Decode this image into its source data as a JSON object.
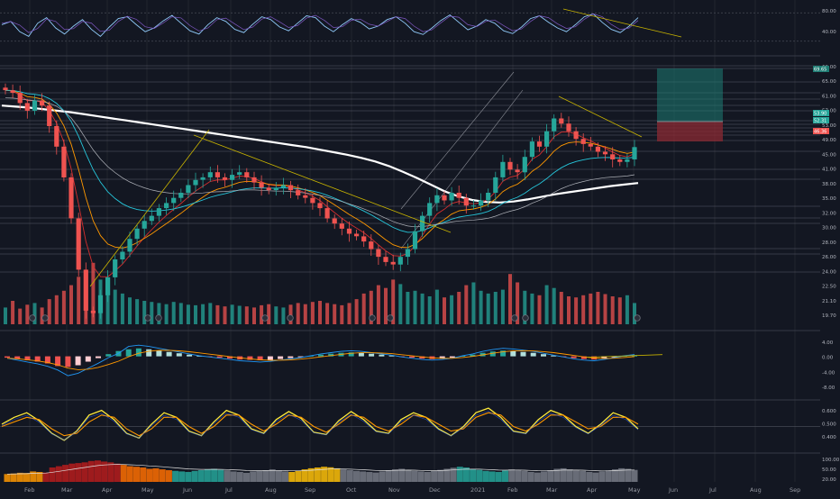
{
  "colors": {
    "background": "#131722",
    "grid": "#2a2e39",
    "up": "#26a69a",
    "down": "#ef5350",
    "sma200": "#ffffff",
    "ema_fast": "#d32f2f",
    "ema_mid": "#ff9800",
    "ema_teal": "#26c6da",
    "trendline": "#c9b400",
    "macd_line": "#2196f3",
    "signal_line": "#ff9800",
    "rsi": "#90caf9",
    "stoch_k": "#ffeb3b",
    "stoch_d": "#ff9800"
  },
  "chart_data": [
    {
      "type": "line",
      "panel": "stochastic-rsi",
      "axis_ticks": [
        "80.00",
        "40.00"
      ],
      "ylim": [
        0,
        100
      ],
      "series": [
        {
          "values": [
            55,
            62,
            40,
            30,
            58,
            70,
            48,
            35,
            52,
            66,
            45,
            30,
            50,
            68,
            72,
            55,
            40,
            48,
            63,
            75,
            58,
            42,
            35,
            55,
            70,
            62,
            45,
            38,
            56,
            72,
            66,
            50,
            42,
            58,
            74,
            70,
            52,
            40,
            55,
            68,
            60,
            46,
            52,
            66,
            72,
            58,
            40,
            34,
            48,
            64,
            76,
            60,
            44,
            52,
            66,
            58,
            42,
            36,
            50,
            68,
            74,
            60,
            48,
            40,
            55,
            72,
            78,
            60,
            45,
            38,
            52,
            70
          ]
        }
      ]
    },
    {
      "type": "candlestick",
      "panel": "price",
      "axis_ticks": [
        "69.00",
        "65.00",
        "61.00",
        "57.00",
        "53.00",
        "49.00",
        "45.00",
        "41.00",
        "38.00",
        "35.00",
        "32.00",
        "30.00",
        "28.00",
        "26.00",
        "24.00",
        "22.50",
        "21.10",
        "19.70"
      ],
      "marker_labels": [
        "53.90",
        "52.31",
        "46.36"
      ],
      "price_tags": [
        "69.65"
      ],
      "ylim": [
        19,
        71
      ],
      "x_labels": [
        "Feb",
        "Mar",
        "Apr",
        "May",
        "Jun",
        "Jul",
        "Aug",
        "Sep",
        "Oct",
        "Nov",
        "Dec",
        "2021",
        "Feb",
        "Mar",
        "Apr",
        "May",
        "Jun",
        "Jul",
        "Aug",
        "Sep"
      ],
      "closes": [
        65.0,
        64.5,
        62.5,
        61.0,
        63.0,
        62.0,
        58.0,
        54.0,
        48.0,
        40.0,
        30.0,
        22.0,
        21.5,
        25.0,
        28.5,
        32.0,
        33.5,
        36.0,
        38.0,
        39.5,
        40.5,
        42.0,
        43.0,
        44.0,
        45.0,
        46.5,
        47.5,
        48.0,
        49.0,
        48.0,
        47.5,
        48.5,
        49.0,
        48.0,
        47.0,
        46.0,
        45.5,
        46.0,
        46.5,
        45.5,
        44.5,
        44.0,
        43.0,
        42.0,
        40.0,
        39.0,
        38.0,
        37.0,
        36.5,
        35.5,
        34.0,
        32.5,
        31.5,
        31.0,
        32.5,
        34.0,
        37.5,
        40.5,
        43.0,
        44.5,
        43.5,
        45.0,
        44.0,
        42.5,
        42.5,
        43.5,
        45.0,
        48.0,
        51.0,
        49.5,
        49.0,
        52.0,
        55.0,
        54.0,
        57.0,
        59.5,
        58.5,
        57.0,
        55.5,
        54.5,
        54.0,
        53.0,
        52.5,
        51.5,
        51.0,
        51.5,
        53.9
      ],
      "sma200": [
        62.0,
        61.8,
        61.6,
        61.3,
        61.0,
        60.7,
        60.3,
        59.9,
        59.5,
        59.1,
        58.7,
        58.3,
        57.9,
        57.5,
        57.1,
        56.7,
        56.3,
        55.9,
        55.5,
        55.1,
        54.7,
        54.3,
        53.9,
        53.4,
        52.9,
        52.4,
        51.8,
        51.1,
        50.2,
        49.1,
        47.9,
        46.6,
        45.3,
        44.3,
        43.6,
        43.2,
        43.1,
        43.3,
        43.7,
        44.2,
        44.7,
        45.1,
        45.5,
        45.9,
        46.3,
        46.6,
        46.9
      ],
      "volume": [
        30,
        42,
        28,
        35,
        38,
        30,
        45,
        52,
        60,
        70,
        85,
        95,
        110,
        80,
        70,
        62,
        55,
        48,
        45,
        42,
        40,
        38,
        36,
        40,
        38,
        35,
        34,
        36,
        38,
        34,
        32,
        35,
        33,
        32,
        30,
        34,
        36,
        32,
        30,
        35,
        38,
        36,
        40,
        42,
        38,
        36,
        34,
        38,
        45,
        55,
        60,
        70,
        65,
        80,
        72,
        58,
        60,
        55,
        50,
        62,
        48,
        52,
        58,
        70,
        75,
        60,
        55,
        58,
        62,
        90,
        75,
        60,
        55,
        52,
        70,
        65,
        58,
        50,
        48,
        52,
        55,
        58,
        54,
        50,
        48,
        52,
        38
      ]
    },
    {
      "type": "bar",
      "panel": "macd",
      "axis_ticks": [
        "4.00",
        "0.00",
        "-4.00",
        "-8.00"
      ],
      "ylim": [
        -9,
        5
      ],
      "histogram": [
        -0.3,
        -0.6,
        -0.9,
        -1.2,
        -1.6,
        -2.2,
        -2.4,
        -2.0,
        -1.2,
        -0.4,
        0.5,
        1.2,
        1.6,
        1.8,
        1.6,
        1.3,
        1.0,
        0.7,
        0.4,
        0.1,
        -0.1,
        -0.3,
        -0.5,
        -0.7,
        -0.8,
        -0.9,
        -0.8,
        -0.6,
        -0.4,
        -0.2,
        0.1,
        0.4,
        0.6,
        0.8,
        0.9,
        0.8,
        0.6,
        0.4,
        0.2,
        -0.1,
        -0.3,
        -0.5,
        -0.6,
        -0.5,
        -0.3,
        0.1,
        0.4,
        0.8,
        1.1,
        1.3,
        1.2,
        1.0,
        0.8,
        0.5,
        0.2,
        -0.1,
        -0.4,
        -0.6,
        -0.7,
        -0.5,
        -0.2,
        0.1,
        0.3
      ]
    },
    {
      "type": "line",
      "panel": "oscillator",
      "axis_ticks": [
        "0.600",
        "0.500",
        "0.400"
      ],
      "ylim": [
        0.3,
        0.7
      ],
      "series": [
        {
          "values": [
            0.52,
            0.58,
            0.62,
            0.55,
            0.44,
            0.38,
            0.46,
            0.6,
            0.64,
            0.56,
            0.44,
            0.4,
            0.52,
            0.62,
            0.58,
            0.46,
            0.42,
            0.54,
            0.64,
            0.6,
            0.48,
            0.44,
            0.56,
            0.63,
            0.57,
            0.45,
            0.43,
            0.55,
            0.63,
            0.56,
            0.46,
            0.44,
            0.56,
            0.62,
            0.58,
            0.48,
            0.42,
            0.5,
            0.62,
            0.66,
            0.58,
            0.46,
            0.44,
            0.56,
            0.64,
            0.6,
            0.5,
            0.44,
            0.52,
            0.62,
            0.58,
            0.48
          ]
        },
        {
          "values": [
            0.5,
            0.54,
            0.58,
            0.56,
            0.48,
            0.42,
            0.44,
            0.54,
            0.6,
            0.58,
            0.48,
            0.42,
            0.48,
            0.58,
            0.58,
            0.5,
            0.44,
            0.5,
            0.6,
            0.6,
            0.52,
            0.46,
            0.52,
            0.6,
            0.58,
            0.5,
            0.45,
            0.52,
            0.6,
            0.58,
            0.5,
            0.46,
            0.52,
            0.6,
            0.58,
            0.52,
            0.46,
            0.48,
            0.58,
            0.62,
            0.6,
            0.5,
            0.46,
            0.52,
            0.6,
            0.6,
            0.54,
            0.48,
            0.5,
            0.58,
            0.58,
            0.52
          ]
        }
      ]
    },
    {
      "type": "bar",
      "panel": "squeeze",
      "axis_ticks": [
        "100.00",
        "50.00",
        "20.00"
      ],
      "ylim": [
        0,
        100
      ],
      "values": [
        30,
        32,
        35,
        34,
        40,
        38,
        36,
        55,
        60,
        65,
        70,
        72,
        75,
        80,
        82,
        78,
        75,
        70,
        65,
        60,
        58,
        55,
        50,
        52,
        48,
        45,
        42,
        40,
        38,
        42,
        45,
        48,
        50,
        46,
        44,
        40,
        38,
        35,
        40,
        42,
        45,
        48,
        44,
        40,
        38,
        42,
        48,
        52,
        55,
        58,
        56,
        52,
        48,
        45,
        42,
        40,
        38,
        36,
        40,
        44,
        48,
        50,
        46,
        42,
        40,
        38,
        42,
        46,
        50,
        54,
        58,
        55,
        50,
        46,
        42,
        40,
        38,
        44,
        48,
        46,
        42,
        38,
        36,
        40,
        45,
        50,
        52,
        48,
        44,
        42,
        38,
        36,
        40,
        44,
        48,
        52,
        50,
        46
      ]
    }
  ]
}
